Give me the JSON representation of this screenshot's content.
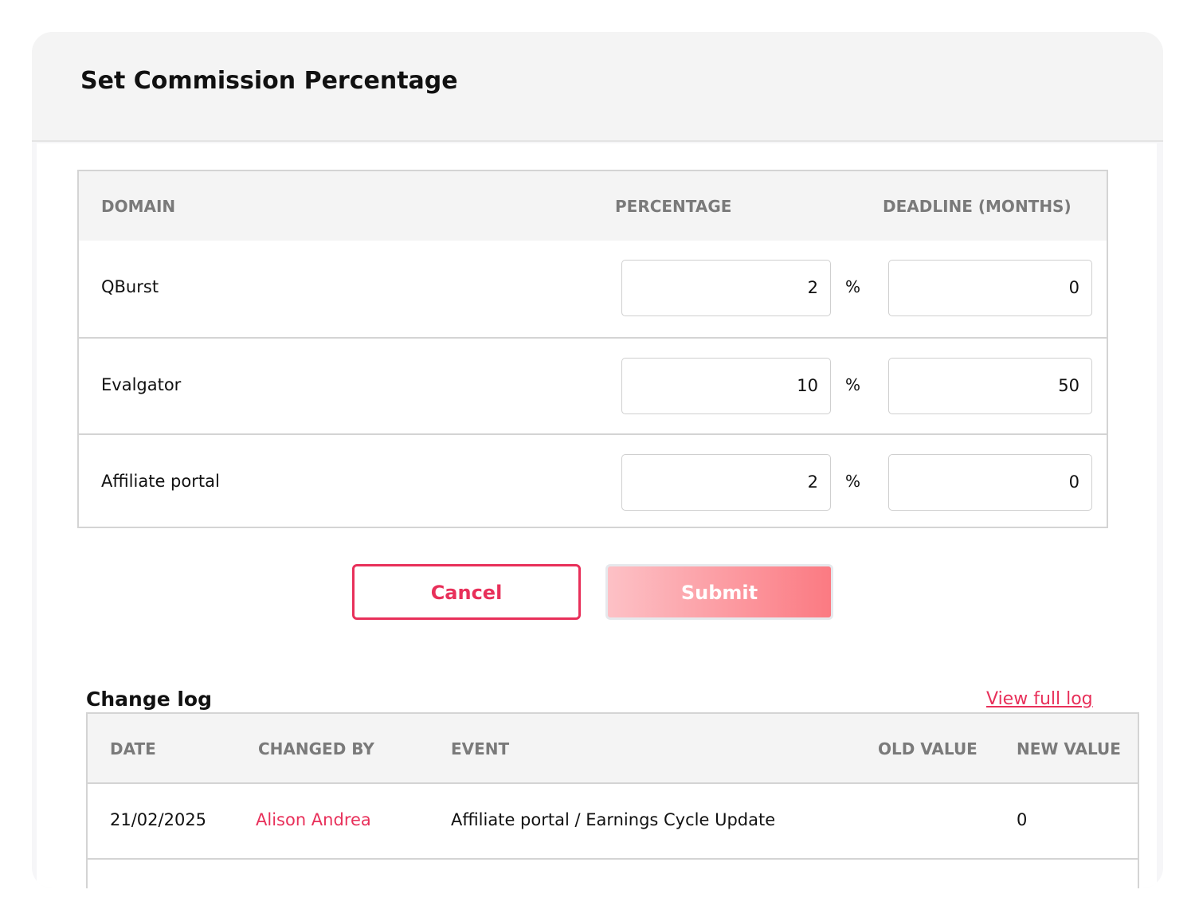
{
  "title": "Set Commission Percentage",
  "commission_table": {
    "headers": {
      "domain": "DOMAIN",
      "percentage": "PERCENTAGE",
      "deadline": "DEADLINE (MONTHS)"
    },
    "percent_symbol": "%",
    "rows": [
      {
        "domain": "QBurst",
        "percentage": "2",
        "deadline": "0"
      },
      {
        "domain": "Evalgator",
        "percentage": "10",
        "deadline": "50"
      },
      {
        "domain": "Affiliate portal",
        "percentage": "2",
        "deadline": "0"
      }
    ]
  },
  "buttons": {
    "cancel": "Cancel",
    "submit": "Submit"
  },
  "change_log": {
    "title": "Change log",
    "view_full_log": "View full log",
    "headers": {
      "date": "DATE",
      "changed_by": "CHANGED BY",
      "event": "EVENT",
      "old_value": "OLD VALUE",
      "new_value": "NEW VALUE"
    },
    "rows": [
      {
        "date": "21/02/2025",
        "changed_by": "Alison Andrea",
        "event": "Affiliate portal / Earnings Cycle Update",
        "old_value": "",
        "new_value": "0"
      }
    ]
  },
  "colors": {
    "accent": "#e8305a",
    "header_bg": "#f4f4f4"
  }
}
